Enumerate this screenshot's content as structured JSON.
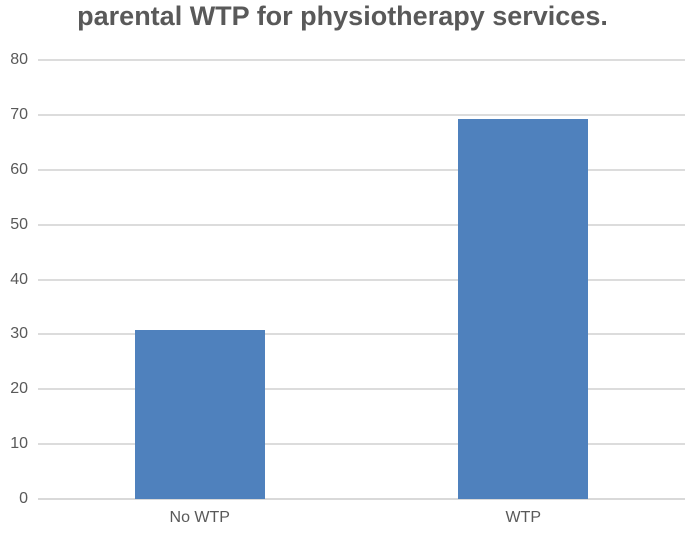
{
  "colors": {
    "bar": "#4F81BD",
    "title_text": "#595959",
    "axis_text": "#595959",
    "gridline": "#DCDCDC",
    "axis_line": "#D9D9D9",
    "background": "#FFFFFF"
  },
  "chart_data": {
    "type": "bar",
    "title": "parental WTP for physiotherapy services.",
    "categories": [
      "No WTP",
      "WTP"
    ],
    "values": [
      30.8,
      69.2
    ],
    "xlabel": "",
    "ylabel": "",
    "ylim": [
      0,
      80
    ],
    "ytick_interval": 10,
    "yticks": [
      0,
      10,
      20,
      30,
      40,
      50,
      60,
      70,
      80
    ],
    "grid": true,
    "legend": false,
    "bar_color": "#4F81BD"
  }
}
